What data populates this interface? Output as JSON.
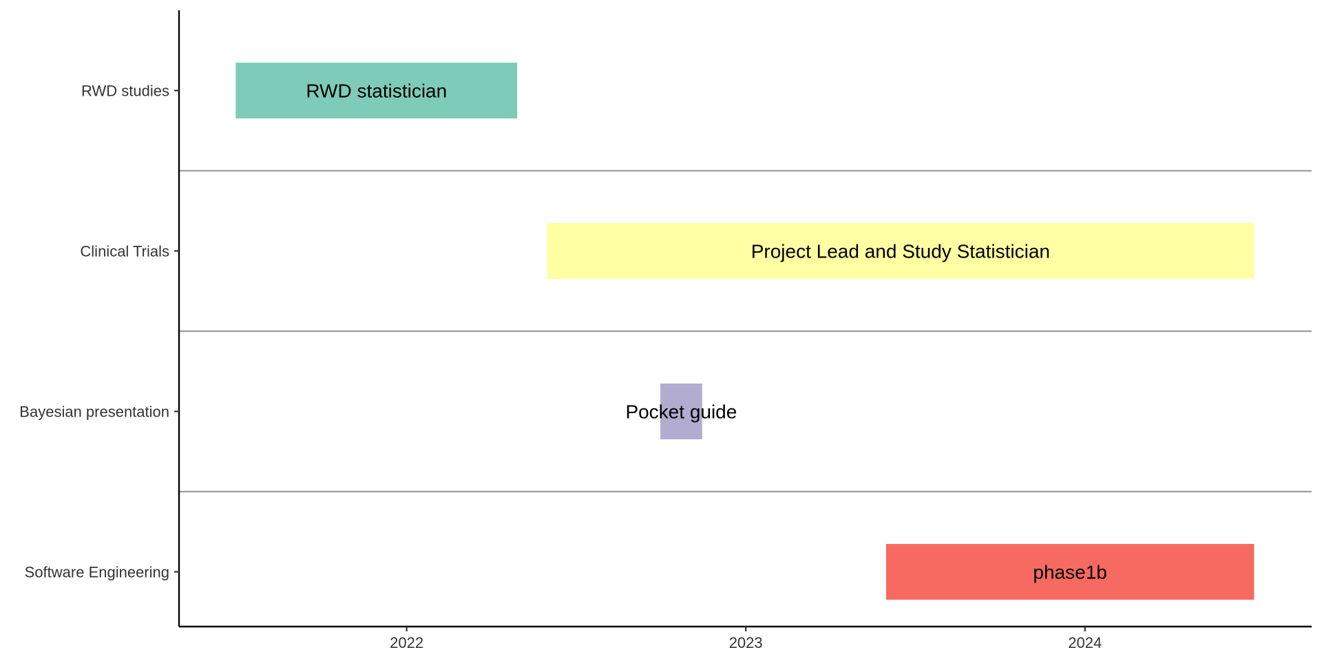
{
  "chart_data": {
    "type": "bar",
    "orientation": "horizontal",
    "subtype": "gantt",
    "title": "",
    "xlabel": "",
    "ylabel": "",
    "x_axis": {
      "type": "date",
      "ticks": [
        "2022",
        "2023",
        "2024"
      ],
      "range": [
        "2021-05-01",
        "2024-09-01"
      ]
    },
    "grid": false,
    "separators_between_rows": true,
    "categories": [
      "RWD studies",
      "Clinical Trials",
      "Bayesian presentation",
      "Software Engineering"
    ],
    "tasks": [
      {
        "category": "RWD studies",
        "label": "RWD statistician",
        "start": "2021-07-01",
        "end": "2022-04-30",
        "color": "#7fcbb9"
      },
      {
        "category": "Clinical Trials",
        "label": "Project Lead and Study Statistician",
        "start": "2022-06-01",
        "end": "2024-07-01",
        "color": "#ffffa3"
      },
      {
        "category": "Bayesian presentation",
        "label": "Pocket guide",
        "start": "2022-10-01",
        "end": "2022-11-15",
        "color": "#b1acd0"
      },
      {
        "category": "Software Engineering",
        "label": "phase1b",
        "start": "2023-06-01",
        "end": "2024-07-01",
        "color": "#f76a61"
      }
    ]
  }
}
